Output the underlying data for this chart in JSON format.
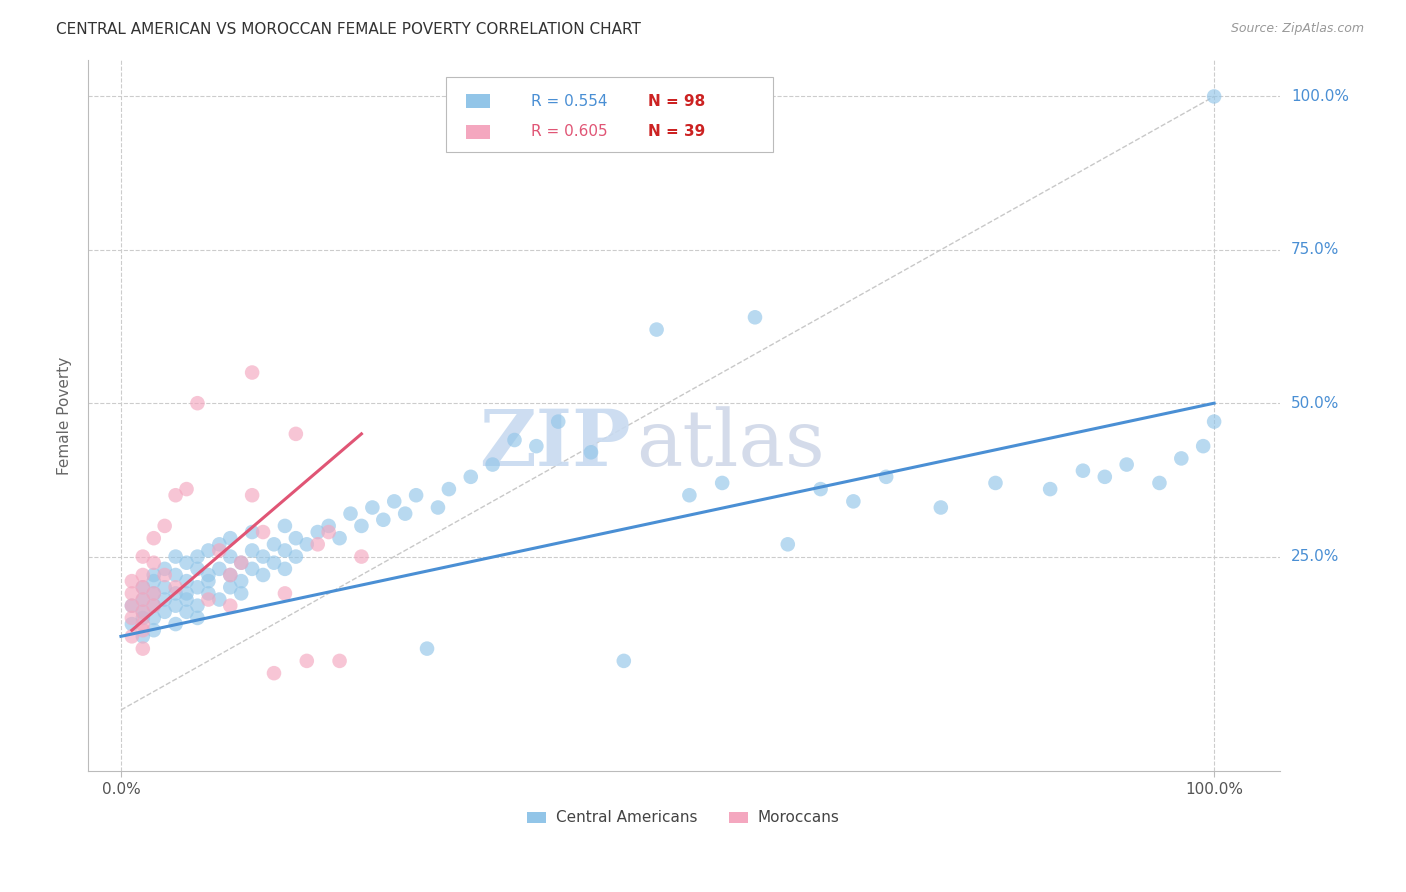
{
  "title": "CENTRAL AMERICAN VS MOROCCAN FEMALE POVERTY CORRELATION CHART",
  "source": "Source: ZipAtlas.com",
  "ylabel": "Female Poverty",
  "x_tick_labels": [
    "0.0%",
    "100.0%"
  ],
  "y_tick_labels": [
    "100.0%",
    "75.0%",
    "50.0%",
    "25.0%"
  ],
  "y_tick_positions": [
    1.0,
    0.75,
    0.5,
    0.25
  ],
  "x_tick_positions": [
    0.0,
    1.0
  ],
  "xlim": [
    -0.03,
    1.06
  ],
  "ylim": [
    -0.1,
    1.06
  ],
  "background_color": "#ffffff",
  "grid_color": "#cccccc",
  "blue_color": "#92c5e8",
  "pink_color": "#f4a7bf",
  "blue_line_color": "#4a8fd4",
  "pink_line_color": "#e05575",
  "diag_line_color": "#c8c8c8",
  "legend_blue_R": "R = 0.554",
  "legend_blue_N": "N = 98",
  "legend_pink_R": "R = 0.605",
  "legend_pink_N": "N = 39",
  "legend_blue_label": "Central Americans",
  "legend_pink_label": "Moroccans",
  "watermark_zip": "ZIP",
  "watermark_atlas": "atlas",
  "blue_scatter_x": [
    0.01,
    0.01,
    0.02,
    0.02,
    0.02,
    0.02,
    0.02,
    0.03,
    0.03,
    0.03,
    0.03,
    0.03,
    0.03,
    0.04,
    0.04,
    0.04,
    0.04,
    0.05,
    0.05,
    0.05,
    0.05,
    0.05,
    0.06,
    0.06,
    0.06,
    0.06,
    0.06,
    0.07,
    0.07,
    0.07,
    0.07,
    0.07,
    0.08,
    0.08,
    0.08,
    0.08,
    0.09,
    0.09,
    0.09,
    0.1,
    0.1,
    0.1,
    0.1,
    0.11,
    0.11,
    0.11,
    0.12,
    0.12,
    0.12,
    0.13,
    0.13,
    0.14,
    0.14,
    0.15,
    0.15,
    0.15,
    0.16,
    0.16,
    0.17,
    0.18,
    0.19,
    0.2,
    0.21,
    0.22,
    0.23,
    0.24,
    0.25,
    0.26,
    0.27,
    0.28,
    0.29,
    0.3,
    0.32,
    0.34,
    0.36,
    0.38,
    0.4,
    0.43,
    0.46,
    0.49,
    0.52,
    0.55,
    0.58,
    0.61,
    0.64,
    0.67,
    0.7,
    0.75,
    0.8,
    0.85,
    0.88,
    0.9,
    0.92,
    0.95,
    0.97,
    0.99,
    1.0,
    1.0
  ],
  "blue_scatter_y": [
    0.14,
    0.17,
    0.12,
    0.15,
    0.18,
    0.2,
    0.16,
    0.13,
    0.17,
    0.19,
    0.21,
    0.15,
    0.22,
    0.16,
    0.2,
    0.23,
    0.18,
    0.14,
    0.19,
    0.22,
    0.25,
    0.17,
    0.18,
    0.21,
    0.24,
    0.16,
    0.19,
    0.2,
    0.23,
    0.17,
    0.25,
    0.15,
    0.22,
    0.26,
    0.19,
    0.21,
    0.23,
    0.18,
    0.27,
    0.22,
    0.25,
    0.2,
    0.28,
    0.24,
    0.21,
    0.19,
    0.26,
    0.23,
    0.29,
    0.25,
    0.22,
    0.27,
    0.24,
    0.26,
    0.3,
    0.23,
    0.28,
    0.25,
    0.27,
    0.29,
    0.3,
    0.28,
    0.32,
    0.3,
    0.33,
    0.31,
    0.34,
    0.32,
    0.35,
    0.1,
    0.33,
    0.36,
    0.38,
    0.4,
    0.44,
    0.43,
    0.47,
    0.42,
    0.08,
    0.62,
    0.35,
    0.37,
    0.64,
    0.27,
    0.36,
    0.34,
    0.38,
    0.33,
    0.37,
    0.36,
    0.39,
    0.38,
    0.4,
    0.37,
    0.41,
    0.43,
    0.47,
    1.0
  ],
  "pink_scatter_x": [
    0.01,
    0.01,
    0.01,
    0.01,
    0.01,
    0.02,
    0.02,
    0.02,
    0.02,
    0.02,
    0.02,
    0.02,
    0.02,
    0.03,
    0.03,
    0.03,
    0.03,
    0.04,
    0.04,
    0.05,
    0.05,
    0.06,
    0.07,
    0.08,
    0.09,
    0.1,
    0.1,
    0.11,
    0.12,
    0.12,
    0.13,
    0.14,
    0.15,
    0.16,
    0.17,
    0.18,
    0.19,
    0.2,
    0.22
  ],
  "pink_scatter_y": [
    0.12,
    0.15,
    0.17,
    0.19,
    0.21,
    0.13,
    0.16,
    0.18,
    0.2,
    0.14,
    0.22,
    0.1,
    0.25,
    0.17,
    0.19,
    0.24,
    0.28,
    0.22,
    0.3,
    0.2,
    0.35,
    0.36,
    0.5,
    0.18,
    0.26,
    0.22,
    0.17,
    0.24,
    0.55,
    0.35,
    0.29,
    0.06,
    0.19,
    0.45,
    0.08,
    0.27,
    0.29,
    0.08,
    0.25
  ],
  "blue_regline_x": [
    0.0,
    1.0
  ],
  "blue_regline_y": [
    0.12,
    0.5
  ],
  "pink_regline_x": [
    0.01,
    0.22
  ],
  "pink_regline_y": [
    0.13,
    0.45
  ]
}
